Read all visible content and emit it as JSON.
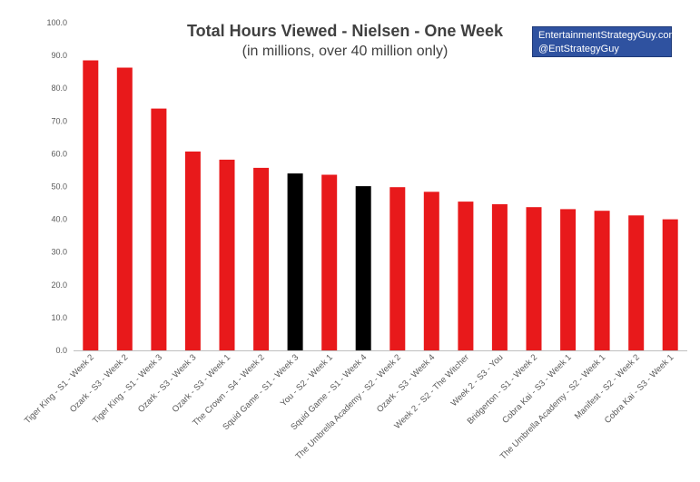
{
  "chart_data": {
    "type": "bar",
    "title": "Total Hours Viewed - Nielsen - One Week",
    "subtitle": "(in millions, over 40 million only)",
    "credit": [
      "EntertainmentStrategyGuy.com",
      "@EntStrategyGuy"
    ],
    "ylim": [
      0,
      100
    ],
    "yticks": [
      "0.0",
      "10.0",
      "20.0",
      "30.0",
      "40.0",
      "50.0",
      "60.0",
      "70.0",
      "80.0",
      "90.0",
      "100.0"
    ],
    "grid": false,
    "categories": [
      "Tiger King - S1 - Week 2",
      "Ozark - S3 - Week 2",
      "Tiger King - S1 - Week 3",
      "Ozark - S3 - Week 3",
      "Ozark - S3 - Week 1",
      "The Crown - S4 - Week 2",
      "Squid Game - S1 - Week 3",
      "You - S2 - Week 1",
      "Squid Game - S1 - Week 4",
      "The Umbrella Academy - S2 - Week 2",
      "Ozark - S3 - Week 4",
      "Week 2 - S2 - The Witcher",
      "Week 2 - S3 - You",
      "Bridgerton - S1 - Week 2",
      "Cobra Kai - S3 - Week 1",
      "The Umbrella Academy - S2 - Week 1",
      "Manifest - S2 - Week 2",
      "Cobra Kai - S3 - Week 1"
    ],
    "values": [
      88.5,
      86.3,
      73.8,
      60.7,
      58.2,
      55.7,
      54.0,
      53.6,
      50.1,
      49.8,
      48.4,
      45.4,
      44.6,
      43.7,
      43.1,
      42.6,
      41.2,
      40.0
    ],
    "colors": {
      "default": "#e8191b",
      "highlight": "#000000",
      "highlight_categories": [
        6,
        8
      ],
      "axis": "#bfbfbf",
      "text": "#595959"
    }
  }
}
